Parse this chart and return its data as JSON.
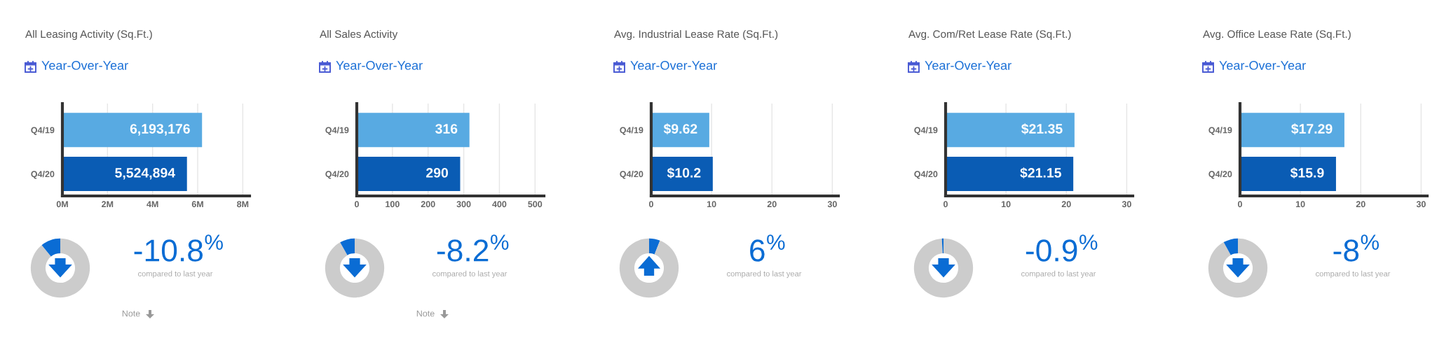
{
  "chart_data": [
    {
      "type": "bar",
      "title": "All Leasing Activity (Sq.Ft.)",
      "subtitle": "Year-Over-Year",
      "orientation": "horizontal",
      "categories": [
        "Q4/19",
        "Q4/20"
      ],
      "values": [
        6193176,
        5524894
      ],
      "colors": [
        "#58aae2",
        "#0a5cb4"
      ],
      "value_labels": [
        "6,193,176",
        "5,524,894"
      ],
      "xlim": [
        0,
        8300000
      ],
      "xticks": [
        {
          "value": 0,
          "label": "0M"
        },
        {
          "value": 2000000,
          "label": "2M"
        },
        {
          "value": 4000000,
          "label": "4M"
        },
        {
          "value": 6000000,
          "label": "6M"
        },
        {
          "value": 8000000,
          "label": "8M"
        }
      ],
      "grid": "x"
    },
    {
      "type": "donut",
      "categories": [
        null,
        null
      ],
      "values": [
        89.2,
        10.8
      ],
      "colors": [
        "#cccccc",
        "#0a6cd4"
      ],
      "annotations": [
        "-10.8$^{%}$",
        "compared to last year",
        "Note"
      ]
    },
    {
      "type": "bar",
      "title": "All Sales Activity",
      "subtitle": "Year-Over-Year",
      "orientation": "horizontal",
      "categories": [
        "Q4/19",
        "Q4/20"
      ],
      "values": [
        316,
        290
      ],
      "colors": [
        "#58aae2",
        "#0a5cb4"
      ],
      "data_labels": true,
      "xlim": [
        0,
        525
      ],
      "xticks": [
        0,
        100,
        200,
        300,
        400,
        500
      ],
      "grid": "x"
    },
    {
      "type": "donut",
      "categories": [
        null,
        null
      ],
      "values": [
        91.8,
        8.2
      ],
      "colors": [
        "#cccccc",
        "#0a6cd4"
      ],
      "annotations": [
        "-8.2$^{%}$",
        "compared to last year",
        "Note"
      ]
    },
    {
      "type": "bar",
      "title": "Avg. Industrial Lease Rate (Sq.Ft.)",
      "subtitle": "Year-Over-Year",
      "orientation": "horizontal",
      "categories": [
        "Q4/19",
        "Q4/20"
      ],
      "values": [
        9.62,
        10.2
      ],
      "colors": [
        "#58aae2",
        "#0a5cb4"
      ],
      "value_labels": [
        "$9.62",
        "$10.2"
      ],
      "xlim": [
        0,
        31
      ],
      "xticks": [
        0,
        10,
        20,
        30
      ],
      "grid": "x"
    },
    {
      "type": "donut",
      "categories": [
        null,
        null
      ],
      "values": [
        6,
        94
      ],
      "colors": [
        "#0a6cd4",
        "#cccccc"
      ],
      "annotations": [
        "6$^{%}$",
        "compared to last year"
      ]
    },
    {
      "type": "bar",
      "title": "Avg. Com/Ret Lease Rate (Sq.Ft.)",
      "subtitle": "Year-Over-Year",
      "orientation": "horizontal",
      "categories": [
        "Q4/19",
        "Q4/20"
      ],
      "values": [
        21.35,
        21.15
      ],
      "colors": [
        "#58aae2",
        "#0a5cb4"
      ],
      "value_labels": [
        "$21.35",
        "$21.15"
      ],
      "xlim": [
        0,
        31
      ],
      "xticks": [
        0,
        10,
        20,
        30
      ],
      "grid": "x"
    },
    {
      "type": "donut",
      "categories": [
        null,
        null
      ],
      "values": [
        99.1,
        0.9
      ],
      "colors": [
        "#cccccc",
        "#0a6cd4"
      ],
      "annotations": [
        "-0.9$^{%}$",
        "compared to last year"
      ]
    },
    {
      "type": "bar",
      "title": "Avg. Office Lease Rate (Sq.Ft.)",
      "subtitle": "Year-Over-Year",
      "orientation": "horizontal",
      "categories": [
        "Q4/19",
        "Q4/20"
      ],
      "values": [
        17.29,
        15.9
      ],
      "colors": [
        "#58aae2",
        "#0a5cb4"
      ],
      "value_labels": [
        "$17.29",
        "$15.9"
      ],
      "xlim": [
        0,
        31
      ],
      "xticks": [
        0,
        10,
        20,
        30
      ],
      "grid": "x"
    },
    {
      "type": "donut",
      "categories": [
        null,
        null
      ],
      "values": [
        92,
        8
      ],
      "colors": [
        "#cccccc",
        "#0a6cd4"
      ],
      "annotations": [
        "-8$^{%}$",
        "compared to last year"
      ]
    }
  ]
}
